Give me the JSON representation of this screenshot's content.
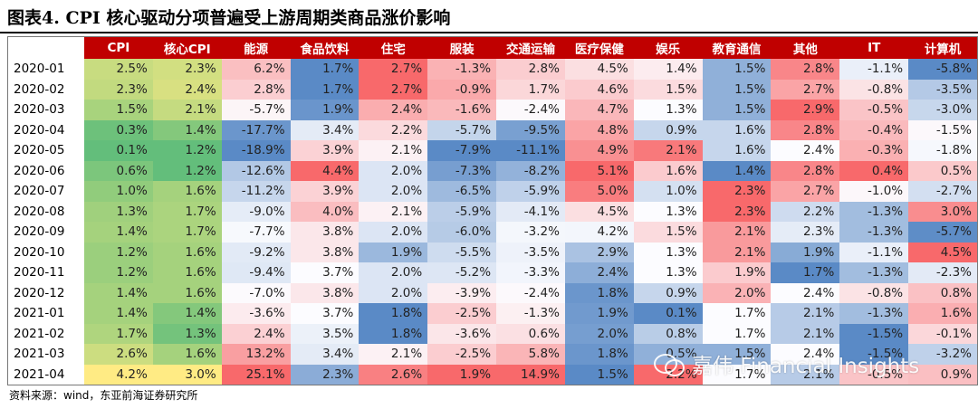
{
  "title": "图表4.    CPI 核心驱动分项普遍受上游周期类商品涨价影响",
  "source": "资料来源：wind，东亚前海证券研究所",
  "watermark": "嘉伟 Financial Insights",
  "chart_data": {
    "type": "table",
    "columns": [
      "CPI",
      "核心CPI",
      "能源",
      "食品饮料",
      "住宅",
      "服装",
      "交通运输",
      "医疗保健",
      "娱乐",
      "教育通信",
      "其他",
      "IT",
      "计算机"
    ],
    "rows": [
      {
        "date": "2020-01",
        "values": [
          2.5,
          2.3,
          6.2,
          1.7,
          2.7,
          -1.3,
          2.8,
          4.5,
          1.4,
          1.5,
          2.8,
          -1.1,
          -5.8
        ]
      },
      {
        "date": "2020-02",
        "values": [
          2.3,
          2.4,
          2.8,
          1.7,
          2.7,
          -0.9,
          1.7,
          4.6,
          1.5,
          1.5,
          2.7,
          -0.8,
          -3.5
        ]
      },
      {
        "date": "2020-03",
        "values": [
          1.5,
          2.1,
          -5.7,
          1.9,
          2.4,
          -1.6,
          -2.4,
          4.7,
          1.3,
          1.5,
          2.9,
          -0.5,
          -3.0
        ]
      },
      {
        "date": "2020-04",
        "values": [
          0.3,
          1.4,
          -17.7,
          3.4,
          2.2,
          -5.7,
          -9.5,
          4.8,
          0.9,
          1.6,
          2.8,
          -0.4,
          -1.5
        ]
      },
      {
        "date": "2020-05",
        "values": [
          0.1,
          1.2,
          -18.9,
          3.9,
          2.1,
          -7.9,
          -11.1,
          4.9,
          2.1,
          1.6,
          2.4,
          -0.3,
          -1.8
        ]
      },
      {
        "date": "2020-06",
        "values": [
          0.6,
          1.2,
          -12.6,
          4.4,
          2.0,
          -7.3,
          -8.2,
          5.1,
          1.6,
          1.4,
          2.8,
          0.4,
          0.5
        ]
      },
      {
        "date": "2020-07",
        "values": [
          1.0,
          1.6,
          -11.2,
          3.9,
          2.0,
          -6.5,
          -5.9,
          5.0,
          1.0,
          2.3,
          2.7,
          -1.0,
          -2.7
        ]
      },
      {
        "date": "2020-08",
        "values": [
          1.3,
          1.7,
          -9.0,
          4.0,
          2.1,
          -5.9,
          -4.1,
          4.5,
          1.3,
          2.3,
          2.2,
          -1.3,
          3.0
        ]
      },
      {
        "date": "2020-09",
        "values": [
          1.4,
          1.7,
          -7.7,
          3.8,
          2.0,
          -6.0,
          -3.2,
          4.2,
          1.5,
          2.1,
          2.3,
          -1.3,
          -5.7
        ]
      },
      {
        "date": "2020-10",
        "values": [
          1.2,
          1.6,
          -9.2,
          3.8,
          1.9,
          -5.5,
          -3.5,
          2.9,
          1.3,
          2.1,
          1.9,
          -1.1,
          4.5
        ]
      },
      {
        "date": "2020-11",
        "values": [
          1.2,
          1.6,
          -9.4,
          3.7,
          2.0,
          -5.2,
          -3.3,
          2.4,
          1.3,
          1.9,
          1.7,
          -1.3,
          -2.3
        ]
      },
      {
        "date": "2020-12",
        "values": [
          1.4,
          1.6,
          -7.0,
          3.8,
          2.0,
          -3.9,
          -2.4,
          1.8,
          0.9,
          2.0,
          2.4,
          -0.8,
          0.8
        ]
      },
      {
        "date": "2021-01",
        "values": [
          1.4,
          1.4,
          -3.6,
          3.7,
          1.8,
          -2.5,
          -1.3,
          1.9,
          0.1,
          1.7,
          2.1,
          -1.3,
          1.6
        ]
      },
      {
        "date": "2021-02",
        "values": [
          1.7,
          1.3,
          2.4,
          3.5,
          1.8,
          -3.6,
          0.6,
          2.0,
          0.8,
          1.7,
          2.1,
          -1.5,
          -0.1
        ]
      },
      {
        "date": "2021-03",
        "values": [
          2.6,
          1.6,
          13.2,
          3.4,
          2.1,
          -2.5,
          5.8,
          1.8,
          0.5,
          1.5,
          2.4,
          -1.5,
          -3.2
        ]
      },
      {
        "date": "2021-04",
        "values": [
          4.2,
          3.0,
          25.1,
          2.3,
          2.6,
          1.9,
          14.9,
          1.5,
          2.2,
          1.7,
          2.1,
          -0.5,
          0.9
        ]
      }
    ]
  }
}
